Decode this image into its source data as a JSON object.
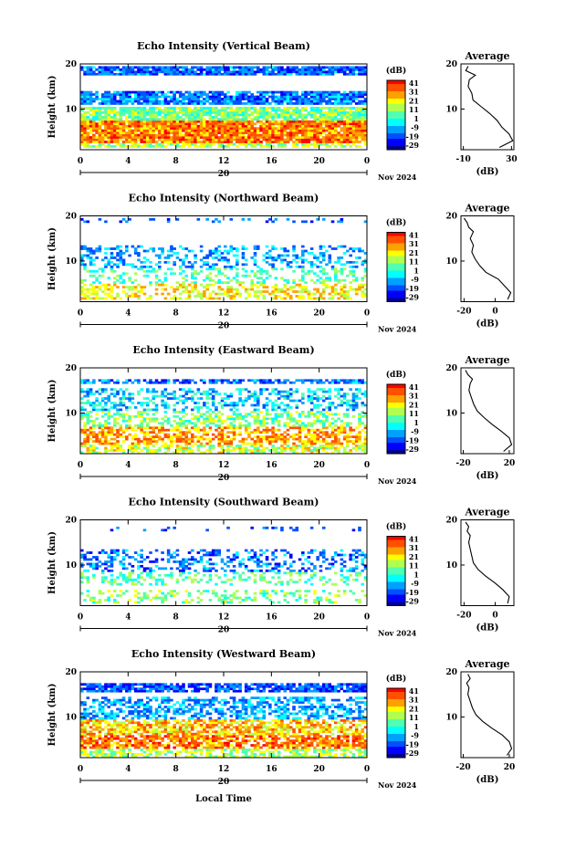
{
  "figure": {
    "xlabel": "Local Time",
    "date_label": "Nov 2024",
    "date_tick": "20"
  },
  "chart_data": [
    {
      "type": "heatmap",
      "title": "Echo Intensity (Vertical Beam)",
      "ylabel": "Height (km)",
      "xlim": [
        0,
        24
      ],
      "ylim": [
        1,
        20
      ],
      "xticks": [
        "0",
        "4",
        "8",
        "12",
        "16",
        "20",
        "0"
      ],
      "yticks": [
        "20",
        "10"
      ],
      "colorbar": {
        "label": "(dB)",
        "ticks": [
          "41",
          "31",
          "21",
          "11",
          "1",
          "-9",
          "-19",
          "-29"
        ]
      },
      "average": {
        "title": "Average",
        "xlabel": "(dB)",
        "xticks": [
          "-10",
          "30"
        ],
        "xlim": [
          -12,
          32
        ],
        "heights": [
          1.5,
          3,
          4.5,
          6,
          7.5,
          9,
          10.5,
          12,
          13.5,
          15,
          16.5,
          17.5,
          18.5,
          19.5
        ],
        "values": [
          20,
          31,
          28,
          22,
          18,
          12,
          5,
          -2,
          -3,
          -6,
          -5,
          0,
          -8,
          -6
        ]
      }
    },
    {
      "type": "heatmap",
      "title": "Echo Intensity (Northward Beam)",
      "ylabel": "Height (km)",
      "xlim": [
        0,
        24
      ],
      "ylim": [
        1,
        20
      ],
      "xticks": [
        "0",
        "4",
        "8",
        "12",
        "16",
        "20",
        "0"
      ],
      "yticks": [
        "20",
        "10"
      ],
      "colorbar": {
        "label": "(dB)",
        "ticks": [
          "41",
          "31",
          "21",
          "11",
          "1",
          "-9",
          "-19",
          "-29"
        ]
      },
      "average": {
        "title": "Average",
        "xlabel": "(dB)",
        "xticks": [
          "-20",
          "0"
        ],
        "xlim": [
          -22,
          12
        ],
        "heights": [
          1.5,
          3,
          4.5,
          6,
          7.5,
          9,
          10.5,
          12,
          13.5,
          15,
          16.5,
          17.5,
          18.5,
          19.5
        ],
        "values": [
          8,
          10,
          6,
          2,
          -6,
          -10,
          -13,
          -15,
          -14,
          -16,
          -14,
          -17,
          -18,
          -20
        ]
      }
    },
    {
      "type": "heatmap",
      "title": "Echo Intensity (Eastward Beam)",
      "ylabel": "Height (km)",
      "xlim": [
        0,
        24
      ],
      "ylim": [
        1,
        20
      ],
      "xticks": [
        "0",
        "4",
        "8",
        "12",
        "16",
        "20",
        "0"
      ],
      "yticks": [
        "20",
        "10"
      ],
      "colorbar": {
        "label": "(dB)",
        "ticks": [
          "41",
          "31",
          "21",
          "11",
          "1",
          "-9",
          "-19",
          "-29"
        ]
      },
      "average": {
        "title": "Average",
        "xlabel": "(dB)",
        "xticks": [
          "-20",
          "20"
        ],
        "xlim": [
          -22,
          24
        ],
        "heights": [
          1.5,
          3,
          4.5,
          6,
          7.5,
          9,
          10.5,
          12,
          13.5,
          15,
          16.5,
          17.5,
          18.5,
          19.5
        ],
        "values": [
          15,
          22,
          20,
          13,
          5,
          -2,
          -8,
          -11,
          -13,
          -15,
          -14,
          -12,
          -16,
          -18
        ]
      }
    },
    {
      "type": "heatmap",
      "title": "Echo Intensity (Southward Beam)",
      "ylabel": "Height (km)",
      "xlim": [
        0,
        24
      ],
      "ylim": [
        1,
        20
      ],
      "xticks": [
        "0",
        "4",
        "8",
        "12",
        "16",
        "20",
        "0"
      ],
      "yticks": [
        "20",
        "10"
      ],
      "colorbar": {
        "label": "(dB)",
        "ticks": [
          "41",
          "31",
          "21",
          "11",
          "1",
          "-9",
          "-19",
          "-29"
        ]
      },
      "average": {
        "title": "Average",
        "xlabel": "(dB)",
        "xticks": [
          "-20",
          "0"
        ],
        "xlim": [
          -22,
          12
        ],
        "heights": [
          1.5,
          3,
          4.5,
          6,
          7.5,
          9,
          10.5,
          12,
          13.5,
          15,
          16.5,
          17.5,
          18.5,
          19.5
        ],
        "values": [
          8,
          9,
          5,
          0,
          -6,
          -11,
          -14,
          -15,
          -16,
          -17,
          -16,
          -18,
          -17,
          -19
        ]
      }
    },
    {
      "type": "heatmap",
      "title": "Echo Intensity (Westward Beam)",
      "ylabel": "Height (km)",
      "xlim": [
        0,
        24
      ],
      "ylim": [
        1,
        20
      ],
      "xticks": [
        "0",
        "4",
        "8",
        "12",
        "16",
        "20",
        "0"
      ],
      "yticks": [
        "20",
        "10"
      ],
      "colorbar": {
        "label": "(dB)",
        "ticks": [
          "41",
          "31",
          "21",
          "11",
          "1",
          "-9",
          "-19",
          "-29"
        ]
      },
      "average": {
        "title": "Average",
        "xlabel": "(dB)",
        "xticks": [
          "-20",
          "20"
        ],
        "xlim": [
          -22,
          24
        ],
        "heights": [
          1.5,
          3,
          4.5,
          6,
          7.5,
          9,
          10.5,
          12,
          13.5,
          15,
          16.5,
          17.5,
          18.5,
          19.5
        ],
        "values": [
          18,
          22,
          20,
          14,
          5,
          -3,
          -9,
          -12,
          -14,
          -16,
          -15,
          -17,
          -14,
          -16
        ]
      }
    }
  ]
}
